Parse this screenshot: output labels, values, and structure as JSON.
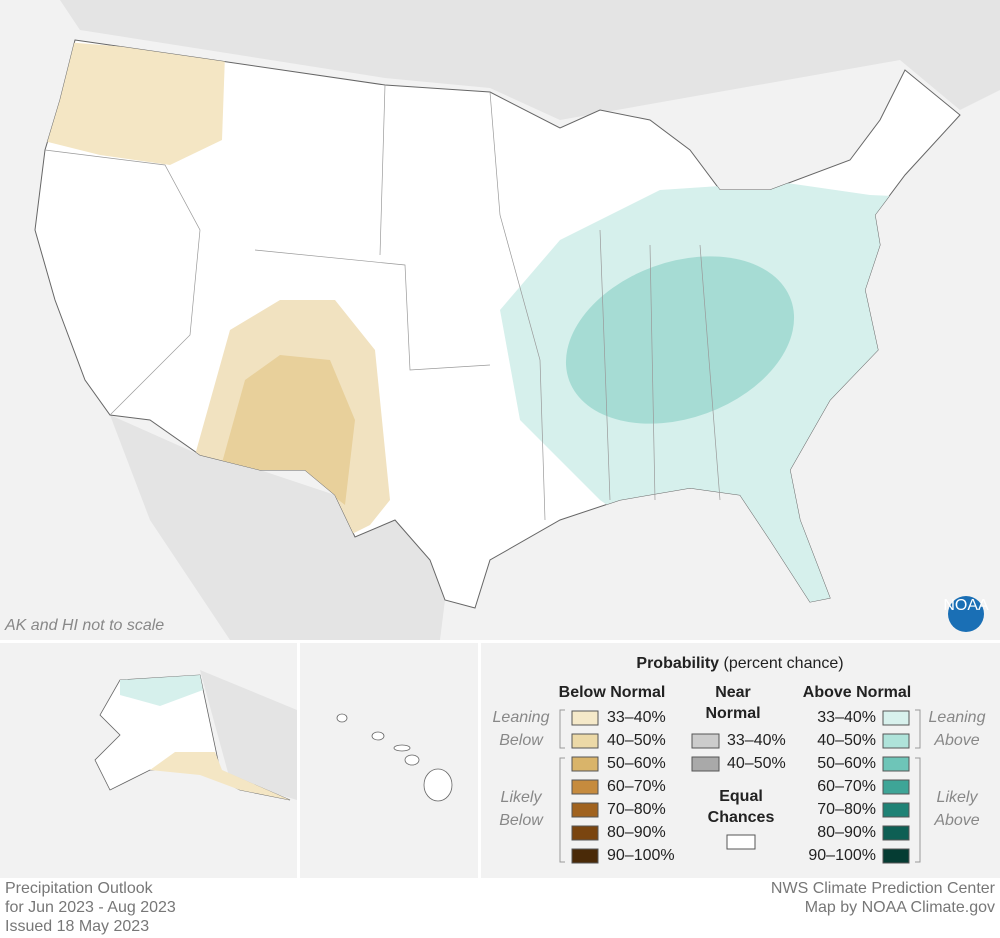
{
  "map": {
    "note": "AK and HI not to scale",
    "logo": "NOAA"
  },
  "legend": {
    "title": "Probability",
    "subtitle": "(percent chance)",
    "below": {
      "heading": "Below Normal",
      "leaning": [
        "Leaning",
        "Below"
      ],
      "likely": [
        "Likely",
        "Below"
      ],
      "items": [
        {
          "label": "33–40%",
          "color": "#f5e9c9"
        },
        {
          "label": "40–50%",
          "color": "#ecd9a7"
        },
        {
          "label": "50–60%",
          "color": "#d9b46a"
        },
        {
          "label": "60–70%",
          "color": "#c68b3e"
        },
        {
          "label": "70–80%",
          "color": "#a0621f"
        },
        {
          "label": "80–90%",
          "color": "#7a4510"
        },
        {
          "label": "90–100%",
          "color": "#4a2a08"
        }
      ]
    },
    "near": {
      "heading": [
        "Near",
        "Normal"
      ],
      "items": [
        {
          "label": "33–40%",
          "color": "#cccccc"
        },
        {
          "label": "40–50%",
          "color": "#a9a9a9"
        }
      ]
    },
    "equal": {
      "heading": [
        "Equal",
        "Chances"
      ],
      "color": "#ffffff"
    },
    "above": {
      "heading": "Above Normal",
      "leaning": [
        "Leaning",
        "Above"
      ],
      "likely": [
        "Likely",
        "Above"
      ],
      "items": [
        {
          "label": "33–40%",
          "color": "#d8f1ed"
        },
        {
          "label": "40–50%",
          "color": "#afe3da"
        },
        {
          "label": "50–60%",
          "color": "#6ec5b8"
        },
        {
          "label": "60–70%",
          "color": "#3ea597"
        },
        {
          "label": "70–80%",
          "color": "#1f8275"
        },
        {
          "label": "80–90%",
          "color": "#0e5f54"
        },
        {
          "label": "90–100%",
          "color": "#053c33"
        }
      ]
    }
  },
  "footer": {
    "left": [
      "Precipitation Outlook",
      "for Jun 2023 - Aug 2023",
      "Issued 18 May 2023"
    ],
    "right": [
      "NWS Climate Prediction Center",
      "Map by NOAA Climate.gov"
    ]
  }
}
